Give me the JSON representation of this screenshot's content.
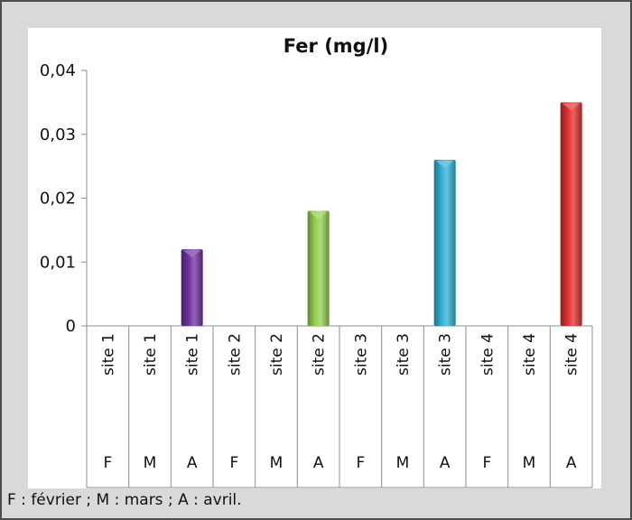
{
  "chart_data": {
    "type": "bar",
    "title": "Fer (mg/l)",
    "xlabel": "",
    "ylabel": "",
    "ylim": [
      0,
      0.04
    ],
    "yticks": [
      "0",
      "0,01",
      "0,02",
      "0,03",
      "0,04"
    ],
    "grid": false,
    "categories": [
      {
        "site": "site 1",
        "month": "F"
      },
      {
        "site": "site 1",
        "month": "M"
      },
      {
        "site": "site 1",
        "month": "A"
      },
      {
        "site": "site 2",
        "month": "F"
      },
      {
        "site": "site 2",
        "month": "M"
      },
      {
        "site": "site 2",
        "month": "A"
      },
      {
        "site": "site 3",
        "month": "F"
      },
      {
        "site": "site 3",
        "month": "M"
      },
      {
        "site": "site 3",
        "month": "A"
      },
      {
        "site": "site 4",
        "month": "F"
      },
      {
        "site": "site 4",
        "month": "M"
      },
      {
        "site": "site 4",
        "month": "A"
      }
    ],
    "values": [
      0,
      0,
      0.012,
      0,
      0,
      0.018,
      0,
      0,
      0.026,
      0,
      0,
      0.035
    ],
    "colors": [
      "#7030a0",
      "#7030a0",
      "#7030a0",
      "#92d050",
      "#92d050",
      "#92d050",
      "#31b0d5",
      "#31b0d5",
      "#31b0d5",
      "#e03030",
      "#e03030",
      "#e03030"
    ]
  },
  "footnote": "F : février ; M : mars ; A : avril."
}
